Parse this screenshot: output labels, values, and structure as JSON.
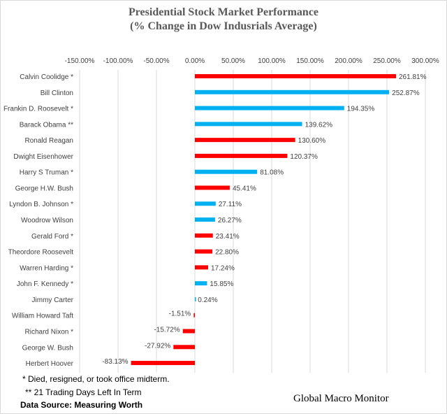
{
  "chart_data": {
    "type": "bar",
    "orientation": "horizontal",
    "title": "Presidential Stock Market Performance",
    "subtitle": "(% Change in Dow Indusrials Average)",
    "xlim": [
      -150,
      300
    ],
    "x_ticks": [
      "-150.00%",
      "-100.00%",
      "-50.00%",
      "0.00%",
      "50.00%",
      "100.00%",
      "150.00%",
      "200.00%",
      "250.00%",
      "300.00%"
    ],
    "tick_values": [
      -150,
      -100,
      -50,
      0,
      50,
      100,
      150,
      200,
      250,
      300
    ],
    "x_axis_position": "top",
    "grid": true,
    "categories": [
      "Calvin Coolidge *",
      "Bill Clinton",
      "Frankin D. Roosevelt *",
      "Barack Obama  **",
      "Ronald Reagan",
      "Dwight Eisenhower",
      "Harry S Truman *",
      "George H.W. Bush",
      "Lyndon B. Johnson *",
      "Woodrow Wilson",
      "Gerald Ford *",
      "Theordore Roosevelt",
      "Warren Harding *",
      "John F. Kennedy *",
      "Jimmy Carter",
      "William Howard Taft",
      "Richard Nixon *",
      "George W. Bush",
      "Herbert Hoover"
    ],
    "values": [
      261.81,
      252.87,
      194.35,
      139.62,
      130.6,
      120.37,
      81.08,
      45.41,
      27.11,
      26.27,
      23.41,
      22.8,
      17.24,
      15.85,
      0.24,
      -1.51,
      -15.72,
      -27.92,
      -83.13
    ],
    "data_labels": [
      "261.81%",
      "252.87%",
      "194.35%",
      "139.62%",
      "130.60%",
      "120.37%",
      "81.08%",
      "45.41%",
      "27.11%",
      "26.27%",
      "23.41%",
      "22.80%",
      "17.24%",
      "15.85%",
      "0.24%",
      "-1.51%",
      "-15.72%",
      "-27.92%",
      "-83.13%"
    ],
    "party": [
      "R",
      "D",
      "D",
      "D",
      "R",
      "R",
      "D",
      "R",
      "D",
      "D",
      "R",
      "R",
      "R",
      "D",
      "D",
      "R",
      "R",
      "R",
      "R"
    ],
    "colors": {
      "R": "#ff0000",
      "D": "#00b0f0"
    }
  },
  "notes": {
    "note1": "* Died, resigned, or took office midterm.",
    "note2": "** 21 Trading Days Left In Term",
    "source": "Data Source:  Measuring Worth",
    "brand": "Global Macro Monitor"
  }
}
